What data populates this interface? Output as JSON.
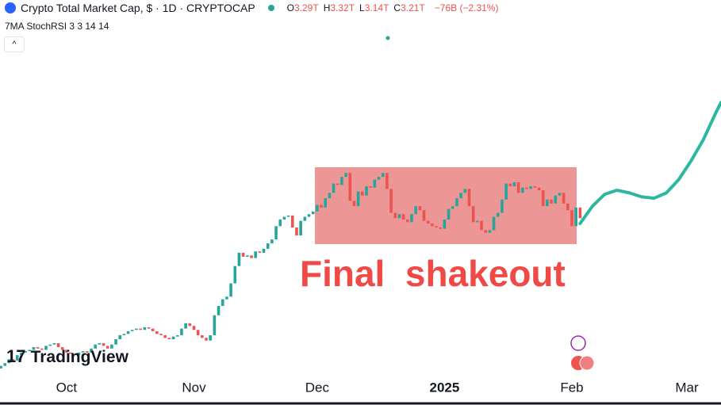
{
  "header": {
    "title": "Crypto Total Market Cap, $ · 1D · CRYPTOCAP",
    "ohlc": [
      {
        "label": "O",
        "value": "3.29T"
      },
      {
        "label": "H",
        "value": "3.32T"
      },
      {
        "label": "L",
        "value": "3.14T"
      },
      {
        "label": "C",
        "value": "3.21T"
      }
    ],
    "change": "−76B (−2.31%)",
    "indicator": "7MA StochRSI 3 3 14 14",
    "watermark": "TradingView"
  },
  "chart_data": {
    "type": "candlestick",
    "up_color": "#26a69a",
    "down_color": "#ef5350",
    "annotation": "Final  shakeout",
    "xlim": [
      -0.2,
      175.3
    ],
    "ylim": [
      2.02,
      4.85
    ],
    "xticks": [
      {
        "value": 16,
        "label": "Oct"
      },
      {
        "value": 47,
        "label": "Nov"
      },
      {
        "value": 77,
        "label": "Dec"
      },
      {
        "value": 108,
        "label": "2025"
      },
      {
        "value": 139,
        "label": "Feb"
      },
      {
        "value": 167,
        "label": "Mar"
      }
    ],
    "open": [
      2.08,
      2.1,
      2.12,
      2.15,
      2.14,
      2.18,
      2.2,
      2.21,
      2.22,
      2.24,
      2.23,
      2.22,
      2.25,
      2.26,
      2.27,
      2.24,
      2.22,
      2.2,
      2.19,
      2.18,
      2.2,
      2.21,
      2.2,
      2.23,
      2.26,
      2.27,
      2.25,
      2.23,
      2.26,
      2.3,
      2.33,
      2.34,
      2.36,
      2.37,
      2.38,
      2.37,
      2.39,
      2.38,
      2.36,
      2.34,
      2.33,
      2.31,
      2.3,
      2.32,
      2.33,
      2.38,
      2.42,
      2.4,
      2.37,
      2.33,
      2.31,
      2.29,
      2.33,
      2.48,
      2.55,
      2.6,
      2.62,
      2.72,
      2.85,
      2.95,
      2.92,
      2.93,
      2.91,
      2.96,
      2.95,
      2.98,
      3.02,
      3.05,
      3.15,
      3.2,
      3.22,
      3.23,
      3.14,
      3.08,
      3.19,
      3.22,
      3.24,
      3.26,
      3.31,
      3.29,
      3.36,
      3.4,
      3.47,
      3.46,
      3.52,
      3.55,
      3.34,
      3.3,
      3.41,
      3.38,
      3.45,
      3.44,
      3.5,
      3.52,
      3.55,
      3.43,
      3.25,
      3.21,
      3.24,
      3.2,
      3.18,
      3.24,
      3.3,
      3.27,
      3.19,
      3.17,
      3.15,
      3.14,
      3.13,
      3.2,
      3.28,
      3.3,
      3.36,
      3.4,
      3.43,
      3.3,
      3.18,
      3.19,
      3.12,
      3.1,
      3.12,
      3.22,
      3.25,
      3.35,
      3.47,
      3.45,
      3.48,
      3.4,
      3.44,
      3.43,
      3.45,
      3.44,
      3.42,
      3.3,
      3.35,
      3.32,
      3.38,
      3.4,
      3.32,
      3.27,
      3.15,
      3.29
    ],
    "close": [
      2.1,
      2.12,
      2.15,
      2.14,
      2.18,
      2.2,
      2.21,
      2.22,
      2.24,
      2.23,
      2.22,
      2.25,
      2.26,
      2.27,
      2.24,
      2.22,
      2.2,
      2.19,
      2.18,
      2.2,
      2.21,
      2.2,
      2.23,
      2.26,
      2.27,
      2.25,
      2.23,
      2.26,
      2.3,
      2.33,
      2.34,
      2.36,
      2.37,
      2.38,
      2.37,
      2.39,
      2.38,
      2.36,
      2.34,
      2.33,
      2.31,
      2.3,
      2.32,
      2.33,
      2.38,
      2.42,
      2.4,
      2.37,
      2.33,
      2.31,
      2.29,
      2.33,
      2.48,
      2.55,
      2.6,
      2.62,
      2.72,
      2.85,
      2.95,
      2.92,
      2.93,
      2.91,
      2.96,
      2.95,
      2.98,
      3.02,
      3.05,
      3.15,
      3.2,
      3.22,
      3.23,
      3.14,
      3.08,
      3.19,
      3.22,
      3.24,
      3.26,
      3.31,
      3.29,
      3.36,
      3.4,
      3.47,
      3.46,
      3.52,
      3.55,
      3.34,
      3.3,
      3.41,
      3.38,
      3.45,
      3.44,
      3.5,
      3.52,
      3.55,
      3.43,
      3.25,
      3.21,
      3.24,
      3.2,
      3.18,
      3.24,
      3.3,
      3.27,
      3.19,
      3.17,
      3.15,
      3.14,
      3.13,
      3.2,
      3.28,
      3.3,
      3.36,
      3.4,
      3.43,
      3.3,
      3.18,
      3.19,
      3.12,
      3.1,
      3.12,
      3.22,
      3.25,
      3.35,
      3.47,
      3.45,
      3.48,
      3.4,
      3.44,
      3.43,
      3.45,
      3.44,
      3.42,
      3.3,
      3.35,
      3.32,
      3.38,
      3.4,
      3.32,
      3.27,
      3.15,
      3.29,
      3.21
    ],
    "forecast": {
      "color": "#2bb8a0",
      "x": [
        141,
        144,
        147,
        150,
        153,
        156,
        159,
        162,
        165,
        168,
        171,
        174,
        175.3
      ],
      "values": [
        3.17,
        3.3,
        3.39,
        3.42,
        3.4,
        3.37,
        3.36,
        3.4,
        3.5,
        3.64,
        3.8,
        4.0,
        4.08
      ]
    }
  }
}
